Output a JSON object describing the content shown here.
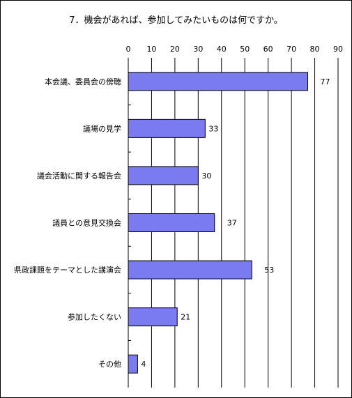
{
  "chart_data": {
    "type": "bar",
    "orientation": "horizontal",
    "title": "7．機会があれば、参加してみたいものは何ですか。",
    "categories": [
      "本会議、委員会の傍聴",
      "議場の見学",
      "議会活動に関する報告会",
      "議員との意見交換会",
      "県政課題をテーマとした講演会",
      "参加したくない",
      "その他"
    ],
    "values": [
      77,
      33,
      30,
      37,
      53,
      21,
      4
    ],
    "xlim": [
      0,
      90
    ],
    "xticks": [
      0,
      10,
      20,
      30,
      40,
      50,
      60,
      70,
      80,
      90
    ],
    "x_axis_position": "top",
    "grid": true,
    "legend": "none",
    "data_labels": true,
    "colors": {
      "bar_fill": "#7b7bf0",
      "bar_stroke": "#000000",
      "grid": "#000000",
      "background": "#ffffff"
    }
  }
}
